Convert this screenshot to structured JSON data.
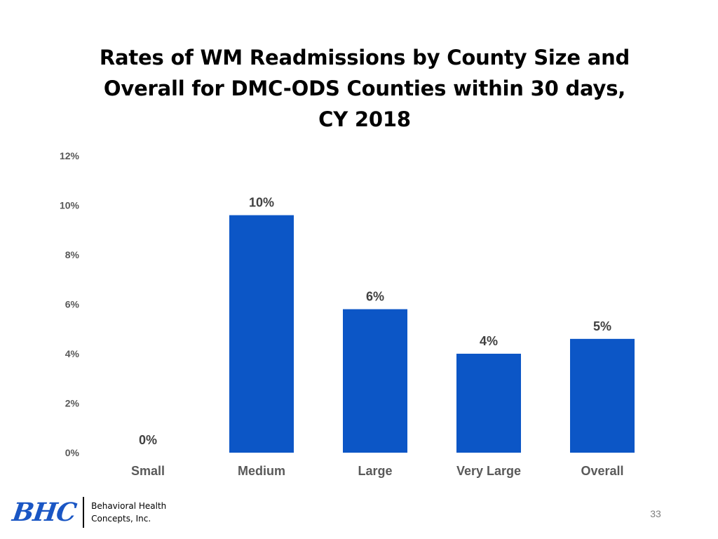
{
  "slide": {
    "title_lines": [
      "Rates of WM Readmissions by County Size and",
      "Overall for DMC-ODS Counties within 30 days,",
      "CY 2018"
    ],
    "page_number": "33"
  },
  "footer": {
    "logo_mark": "BHC",
    "company_line1": "Behavioral Health",
    "company_line2": "Concepts, Inc."
  },
  "chart_data": {
    "type": "bar",
    "title": "Rates of WM Readmissions by County Size and Overall for DMC-ODS Counties within 30 days, CY 2018",
    "xlabel": "",
    "ylabel": "",
    "categories": [
      "Small",
      "Medium",
      "Large",
      "Very Large",
      "Overall"
    ],
    "values": [
      0,
      9.6,
      5.8,
      4.0,
      4.6
    ],
    "data_labels": [
      "0%",
      "10%",
      "6%",
      "4%",
      "5%"
    ],
    "ylim": [
      0,
      12
    ],
    "yticks": [
      0,
      2,
      4,
      6,
      8,
      10,
      12
    ],
    "ytick_labels": [
      "0%",
      "2%",
      "4%",
      "6%",
      "8%",
      "10%",
      "12%"
    ],
    "grid": false,
    "legend": "none",
    "bar_color": "#0c56c6"
  }
}
